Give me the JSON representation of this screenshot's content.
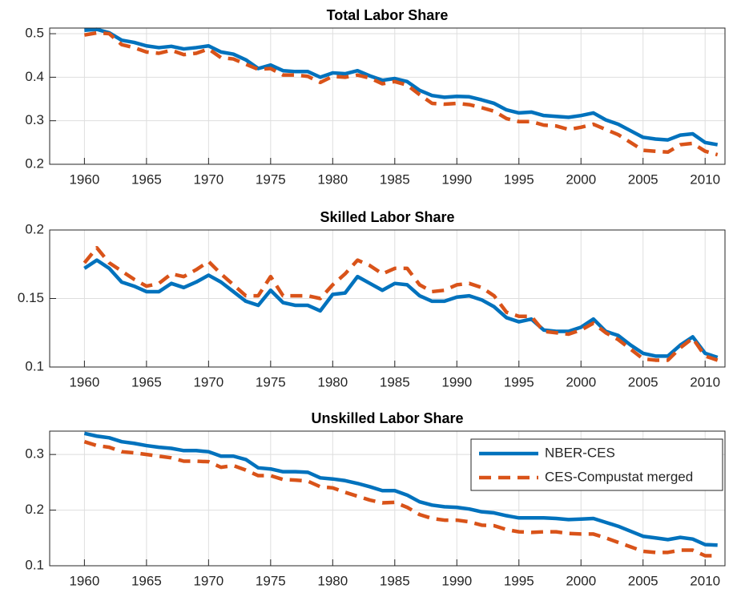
{
  "chart_data": [
    {
      "type": "line",
      "title": "Total Labor Share",
      "x": [
        1960,
        1961,
        1962,
        1963,
        1964,
        1965,
        1966,
        1967,
        1968,
        1969,
        1970,
        1971,
        1972,
        1973,
        1974,
        1975,
        1976,
        1977,
        1978,
        1979,
        1980,
        1981,
        1982,
        1983,
        1984,
        1985,
        1986,
        1987,
        1988,
        1989,
        1990,
        1991,
        1992,
        1993,
        1994,
        1995,
        1996,
        1997,
        1998,
        1999,
        2000,
        2001,
        2002,
        2003,
        2004,
        2005,
        2006,
        2007,
        2008,
        2009,
        2010,
        2011
      ],
      "xlim": [
        1957.2,
        2011.6
      ],
      "xticks": [
        1960,
        1965,
        1970,
        1975,
        1980,
        1985,
        1990,
        1995,
        2000,
        2005,
        2010
      ],
      "ylim": [
        0.2,
        0.513
      ],
      "yticks": [
        0.2,
        0.3,
        0.4,
        0.5
      ],
      "grid": true,
      "series": [
        {
          "color": "#0072bd",
          "style": "solid",
          "values": [
            0.508,
            0.51,
            0.502,
            0.485,
            0.48,
            0.472,
            0.468,
            0.471,
            0.465,
            0.468,
            0.472,
            0.458,
            0.453,
            0.44,
            0.42,
            0.428,
            0.415,
            0.413,
            0.413,
            0.4,
            0.41,
            0.408,
            0.415,
            0.403,
            0.393,
            0.397,
            0.39,
            0.37,
            0.358,
            0.354,
            0.356,
            0.355,
            0.348,
            0.34,
            0.325,
            0.318,
            0.32,
            0.312,
            0.31,
            0.308,
            0.312,
            0.318,
            0.302,
            0.292,
            0.277,
            0.262,
            0.258,
            0.256,
            0.267,
            0.27,
            0.25,
            0.245
          ]
        },
        {
          "color": "#d95319",
          "style": "dashed",
          "values": [
            0.497,
            0.502,
            0.5,
            0.475,
            0.468,
            0.458,
            0.455,
            0.462,
            0.452,
            0.455,
            0.465,
            0.445,
            0.442,
            0.43,
            0.418,
            0.42,
            0.405,
            0.405,
            0.402,
            0.388,
            0.402,
            0.4,
            0.405,
            0.398,
            0.385,
            0.39,
            0.382,
            0.36,
            0.34,
            0.338,
            0.34,
            0.337,
            0.33,
            0.322,
            0.305,
            0.298,
            0.298,
            0.29,
            0.288,
            0.28,
            0.285,
            0.292,
            0.28,
            0.268,
            0.25,
            0.232,
            0.23,
            0.228,
            0.245,
            0.248,
            0.23,
            0.222
          ]
        }
      ]
    },
    {
      "type": "line",
      "title": "Skilled Labor Share",
      "x": [
        1960,
        1961,
        1962,
        1963,
        1964,
        1965,
        1966,
        1967,
        1968,
        1969,
        1970,
        1971,
        1972,
        1973,
        1974,
        1975,
        1976,
        1977,
        1978,
        1979,
        1980,
        1981,
        1982,
        1983,
        1984,
        1985,
        1986,
        1987,
        1988,
        1989,
        1990,
        1991,
        1992,
        1993,
        1994,
        1995,
        1996,
        1997,
        1998,
        1999,
        2000,
        2001,
        2002,
        2003,
        2004,
        2005,
        2006,
        2007,
        2008,
        2009,
        2010,
        2011
      ],
      "xlim": [
        1957.2,
        2011.6
      ],
      "xticks": [
        1960,
        1965,
        1970,
        1975,
        1980,
        1985,
        1990,
        1995,
        2000,
        2005,
        2010
      ],
      "ylim": [
        0.1,
        0.2
      ],
      "yticks": [
        0.1,
        0.15,
        0.2
      ],
      "grid": true,
      "series": [
        {
          "color": "#0072bd",
          "style": "solid",
          "values": [
            0.172,
            0.178,
            0.172,
            0.162,
            0.159,
            0.155,
            0.155,
            0.161,
            0.158,
            0.162,
            0.167,
            0.162,
            0.155,
            0.148,
            0.145,
            0.156,
            0.147,
            0.145,
            0.145,
            0.141,
            0.153,
            0.154,
            0.166,
            0.161,
            0.156,
            0.161,
            0.16,
            0.152,
            0.148,
            0.148,
            0.151,
            0.152,
            0.149,
            0.144,
            0.136,
            0.133,
            0.135,
            0.127,
            0.126,
            0.126,
            0.129,
            0.135,
            0.126,
            0.123,
            0.116,
            0.11,
            0.108,
            0.108,
            0.116,
            0.122,
            0.11,
            0.107
          ]
        },
        {
          "color": "#d95319",
          "style": "dashed",
          "values": [
            0.176,
            0.187,
            0.176,
            0.17,
            0.164,
            0.159,
            0.161,
            0.168,
            0.166,
            0.171,
            0.177,
            0.168,
            0.16,
            0.152,
            0.152,
            0.166,
            0.152,
            0.152,
            0.152,
            0.15,
            0.16,
            0.168,
            0.178,
            0.174,
            0.168,
            0.172,
            0.172,
            0.16,
            0.155,
            0.156,
            0.16,
            0.161,
            0.158,
            0.152,
            0.14,
            0.137,
            0.137,
            0.126,
            0.125,
            0.124,
            0.127,
            0.132,
            0.125,
            0.12,
            0.113,
            0.106,
            0.105,
            0.105,
            0.114,
            0.121,
            0.108,
            0.105
          ]
        }
      ]
    },
    {
      "type": "line",
      "title": "Unskilled Labor Share",
      "x": [
        1960,
        1961,
        1962,
        1963,
        1964,
        1965,
        1966,
        1967,
        1968,
        1969,
        1970,
        1971,
        1972,
        1973,
        1974,
        1975,
        1976,
        1977,
        1978,
        1979,
        1980,
        1981,
        1982,
        1983,
        1984,
        1985,
        1986,
        1987,
        1988,
        1989,
        1990,
        1991,
        1992,
        1993,
        1994,
        1995,
        1996,
        1997,
        1998,
        1999,
        2000,
        2001,
        2002,
        2003,
        2004,
        2005,
        2006,
        2007,
        2008,
        2009,
        2010,
        2011
      ],
      "xlim": [
        1957.2,
        2011.6
      ],
      "xticks": [
        1960,
        1965,
        1970,
        1975,
        1980,
        1985,
        1990,
        1995,
        2000,
        2005,
        2010
      ],
      "ylim": [
        0.1,
        0.342
      ],
      "yticks": [
        0.1,
        0.2,
        0.3
      ],
      "grid": true,
      "legend": "northeast",
      "series": [
        {
          "name": "NBER-CES",
          "color": "#0072bd",
          "style": "solid",
          "values": [
            0.338,
            0.333,
            0.33,
            0.323,
            0.32,
            0.316,
            0.313,
            0.311,
            0.307,
            0.307,
            0.305,
            0.297,
            0.297,
            0.291,
            0.276,
            0.274,
            0.269,
            0.269,
            0.268,
            0.258,
            0.256,
            0.253,
            0.248,
            0.242,
            0.235,
            0.235,
            0.227,
            0.215,
            0.209,
            0.206,
            0.205,
            0.202,
            0.197,
            0.195,
            0.19,
            0.186,
            0.186,
            0.186,
            0.185,
            0.183,
            0.184,
            0.185,
            0.178,
            0.171,
            0.162,
            0.153,
            0.15,
            0.147,
            0.151,
            0.148,
            0.138,
            0.137
          ]
        },
        {
          "name": "CES-Compustat merged",
          "color": "#d95319",
          "style": "dashed",
          "values": [
            0.323,
            0.316,
            0.313,
            0.305,
            0.303,
            0.3,
            0.297,
            0.294,
            0.288,
            0.288,
            0.287,
            0.277,
            0.28,
            0.272,
            0.262,
            0.262,
            0.255,
            0.254,
            0.252,
            0.242,
            0.24,
            0.232,
            0.225,
            0.218,
            0.213,
            0.214,
            0.205,
            0.192,
            0.185,
            0.182,
            0.182,
            0.179,
            0.173,
            0.172,
            0.165,
            0.161,
            0.16,
            0.161,
            0.161,
            0.158,
            0.157,
            0.157,
            0.15,
            0.142,
            0.134,
            0.126,
            0.124,
            0.124,
            0.128,
            0.128,
            0.118,
            0.118
          ]
        }
      ]
    }
  ]
}
